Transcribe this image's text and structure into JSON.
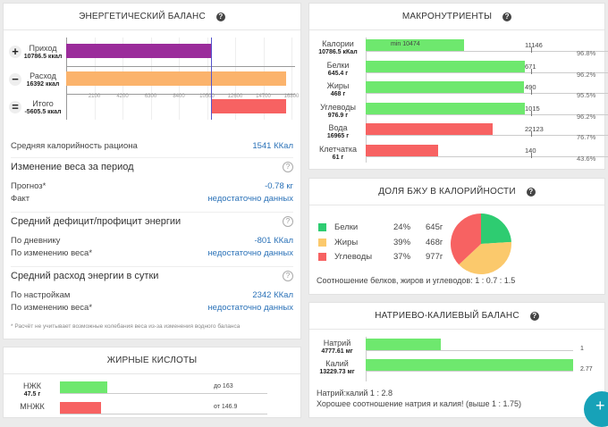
{
  "energy": {
    "title": "ЭНЕРГЕТИЧЕСКИЙ БАЛАНС",
    "rows": [
      {
        "sign": "+",
        "label": "Приход",
        "value": "10786.5 ккал",
        "kcal": 10786.5,
        "color": "#9b2c9b"
      },
      {
        "sign": "−",
        "label": "Расход",
        "value": "16392 ккал",
        "kcal": 16392,
        "color": "#fbb36c"
      },
      {
        "sign": "=",
        "label": "Итого",
        "value": "-5605.5 ккал",
        "kcal": -5605.5,
        "color": "#f76262"
      }
    ],
    "ticks": [
      "2100",
      "4200",
      "6300",
      "8400",
      "10500",
      "12600",
      "14700",
      "16800"
    ],
    "avg_label": "Средняя калорийность рациона",
    "avg_value": "1541 ККал",
    "sections": [
      {
        "title": "Изменение веса за период",
        "rows": [
          {
            "label": "Прогноз*",
            "value": "-0.78 кг"
          },
          {
            "label": "Факт",
            "value": "недостаточно данных"
          }
        ]
      },
      {
        "title": "Средний дефицит/профицит энергии",
        "rows": [
          {
            "label": "По дневнику",
            "value": "-801 ККал"
          },
          {
            "label": "По изменению веса*",
            "value": "недостаточно данных"
          }
        ]
      },
      {
        "title": "Средний расход энергии в сутки",
        "rows": [
          {
            "label": "По настройкам",
            "value": "2342 ККал"
          },
          {
            "label": "По изменению веса*",
            "value": "недостаточно данных"
          }
        ]
      }
    ],
    "footnote": "* Расчёт не учитывает возможные колебания веса из-за изменения водного баланса"
  },
  "macros": {
    "title": "МАКРОНУТРИЕНТЫ",
    "items": [
      {
        "label": "Калории",
        "value": "10786.5 кКал",
        "target": "11146",
        "pct": "96.8%",
        "fill": 0.6,
        "color": "#6ee86e",
        "note": "min 10474"
      },
      {
        "label": "Белки",
        "value": "645.4 г",
        "target": "671",
        "pct": "96.2%",
        "fill": 0.962,
        "color": "#6ee86e"
      },
      {
        "label": "Жиры",
        "value": "468 г",
        "target": "490",
        "pct": "95.5%",
        "fill": 0.955,
        "color": "#6ee86e"
      },
      {
        "label": "Углеводы",
        "value": "976.9 г",
        "target": "1015",
        "pct": "96.2%",
        "fill": 0.962,
        "color": "#6ee86e"
      },
      {
        "label": "Вода",
        "value": "16965 г",
        "target": "22123",
        "pct": "76.7%",
        "fill": 0.767,
        "color": "#f76262"
      },
      {
        "label": "Клетчатка",
        "value": "61 г",
        "target": "140",
        "pct": "43.6%",
        "fill": 0.436,
        "color": "#f76262"
      }
    ]
  },
  "bju": {
    "title": "ДОЛЯ БЖУ В КАЛОРИЙНОСТИ",
    "items": [
      {
        "label": "Белки",
        "pct": "24%",
        "grams": "645г",
        "share": 24,
        "color": "#2ecc71"
      },
      {
        "label": "Жиры",
        "pct": "39%",
        "grams": "468г",
        "share": 39,
        "color": "#fbc96c"
      },
      {
        "label": "Углеводы",
        "pct": "37%",
        "grams": "977г",
        "share": 37,
        "color": "#f76262"
      }
    ],
    "ratio": "Соотношение белков, жиров и углеводов: 1 : 0.7 : 1.5"
  },
  "nak": {
    "title": "НАТРИЕВО-КАЛИЕВЫЙ БАЛАНС",
    "items": [
      {
        "label": "Натрий",
        "value": "4777.61 мг",
        "ratio": "1",
        "fill": 0.36
      },
      {
        "label": "Калий",
        "value": "13229.73 мг",
        "ratio": "2.77",
        "fill": 1
      }
    ],
    "line1": "Натрий:калий 1 : 2.8",
    "line2": "Хорошее соотношение натрия и калия! (выше 1 : 1.75)"
  },
  "fatty": {
    "title": "ЖИРНЫЕ КИСЛОТЫ",
    "items": [
      {
        "label": "НЖК",
        "value": "47.5 г",
        "target": "до 163",
        "fill": 0.23,
        "color": "#6ee86e"
      },
      {
        "label": "МНЖК",
        "target": "от 146.9",
        "fill": 0.2,
        "color": "#f76262"
      }
    ]
  },
  "fab": {
    "label": "+",
    "color": "#17a2b8"
  }
}
